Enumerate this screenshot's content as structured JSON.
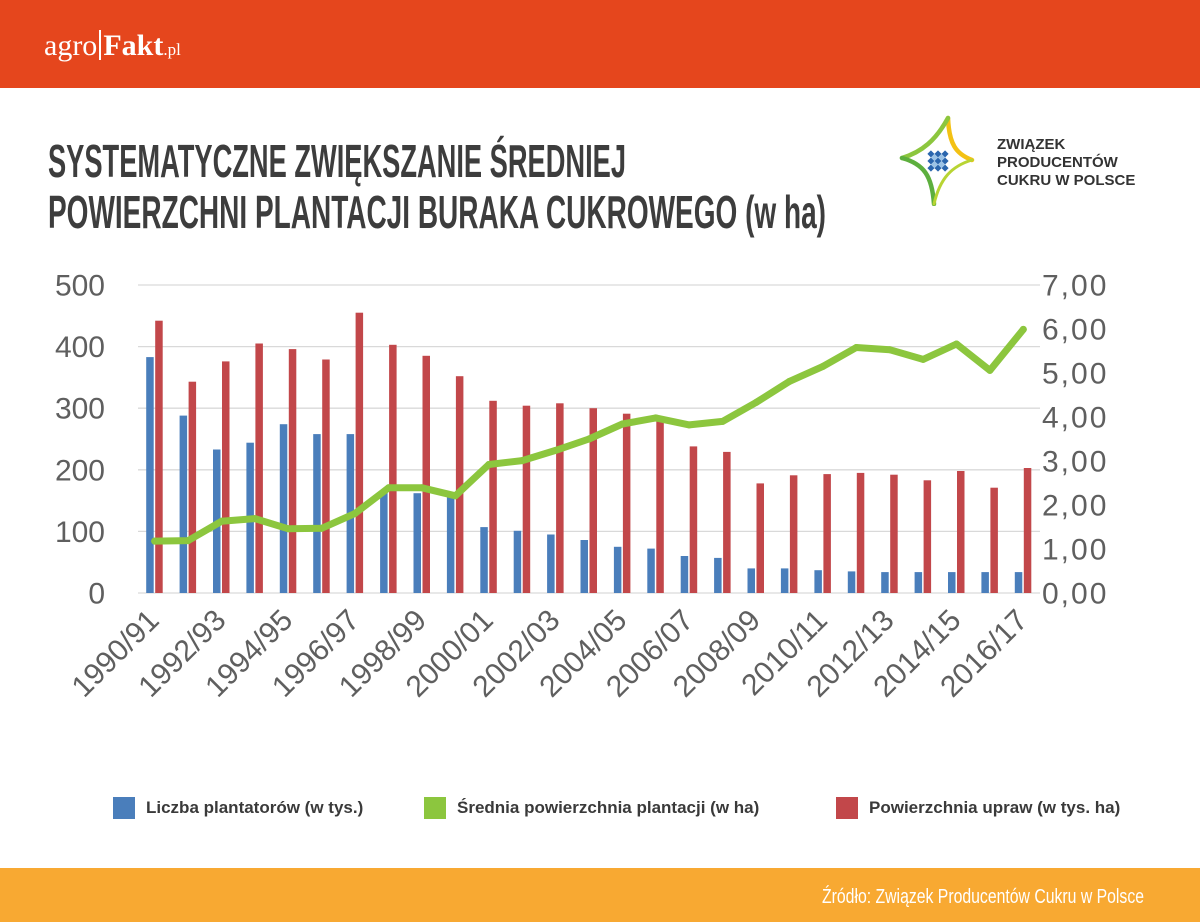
{
  "header": {
    "logo": {
      "agro": "agro",
      "fakt": "Fakt",
      "pl": ".pl"
    }
  },
  "title": {
    "line1": "SYSTEMATYCZNE ZWIĘKSZANIE ŚREDNIEJ",
    "line2": "POWIERZCHNI PLANTACJI BURAKA CUKROWEGO (w ha)"
  },
  "org_logo": {
    "icon": "star-compass-icon",
    "line1": "ZWIĄZEK",
    "line2": "PRODUCENTÓW",
    "line3": "CUKRU W POLSCE"
  },
  "chart_data": {
    "type": "bar",
    "categories": [
      "1990/91",
      "",
      "1992/93",
      "",
      "1994/95",
      "",
      "1996/97",
      "",
      "1998/99",
      "",
      "2000/01",
      "",
      "2002/03",
      "",
      "2004/05",
      "",
      "2006/07",
      "",
      "2008/09",
      "",
      "2010/11",
      "",
      "2012/13",
      "",
      "2014/15",
      "",
      "2016/17"
    ],
    "series": [
      {
        "name": "Liczba plantatorów (w tys.)",
        "type": "bar",
        "axis": "left",
        "color": "#4A7EBB",
        "values": [
          383,
          288,
          233,
          244,
          274,
          258,
          258,
          165,
          162,
          156,
          107,
          101,
          95,
          86,
          75,
          72,
          60,
          57,
          40,
          40,
          37,
          35,
          34,
          34,
          34,
          34,
          34
        ]
      },
      {
        "name": "Średnia powierzchnia plantacji (w ha)",
        "type": "line",
        "axis": "right",
        "color": "#8CC63E",
        "values": [
          1.18,
          1.19,
          1.63,
          1.69,
          1.46,
          1.47,
          1.81,
          2.39,
          2.39,
          2.21,
          2.92,
          3.01,
          3.24,
          3.5,
          3.84,
          3.98,
          3.82,
          3.9,
          4.33,
          4.81,
          5.15,
          5.58,
          5.53,
          5.31,
          5.66,
          5.06,
          5.99
        ]
      },
      {
        "name": "Powierzchnia upraw (w tys. ha)",
        "type": "bar",
        "axis": "left",
        "color": "#C2474A",
        "values": [
          442,
          343,
          376,
          405,
          396,
          379,
          455,
          403,
          385,
          352,
          312,
          304,
          308,
          300,
          291,
          285,
          238,
          229,
          178,
          191,
          193,
          195,
          192,
          183,
          198,
          171,
          203
        ]
      }
    ],
    "y_left": {
      "lim": [
        0,
        500
      ],
      "ticks": [
        "0",
        "100",
        "200",
        "300",
        "400",
        "500"
      ]
    },
    "y_right": {
      "lim": [
        0,
        7
      ],
      "ticks": [
        "0,00",
        "1,00",
        "2,00",
        "3,00",
        "4,00",
        "5,00",
        "6,00",
        "7,00"
      ]
    },
    "grid": true,
    "legend_position": "bottom"
  },
  "footer": {
    "source": "Źródło: Związek Producentów Cukru w Polsce"
  },
  "colors": {
    "header": "#E5461D",
    "footer": "#F8A932",
    "title": "#3D3D3D",
    "axis_text": "#5F5F5F",
    "grid": "#D9D9D9"
  }
}
